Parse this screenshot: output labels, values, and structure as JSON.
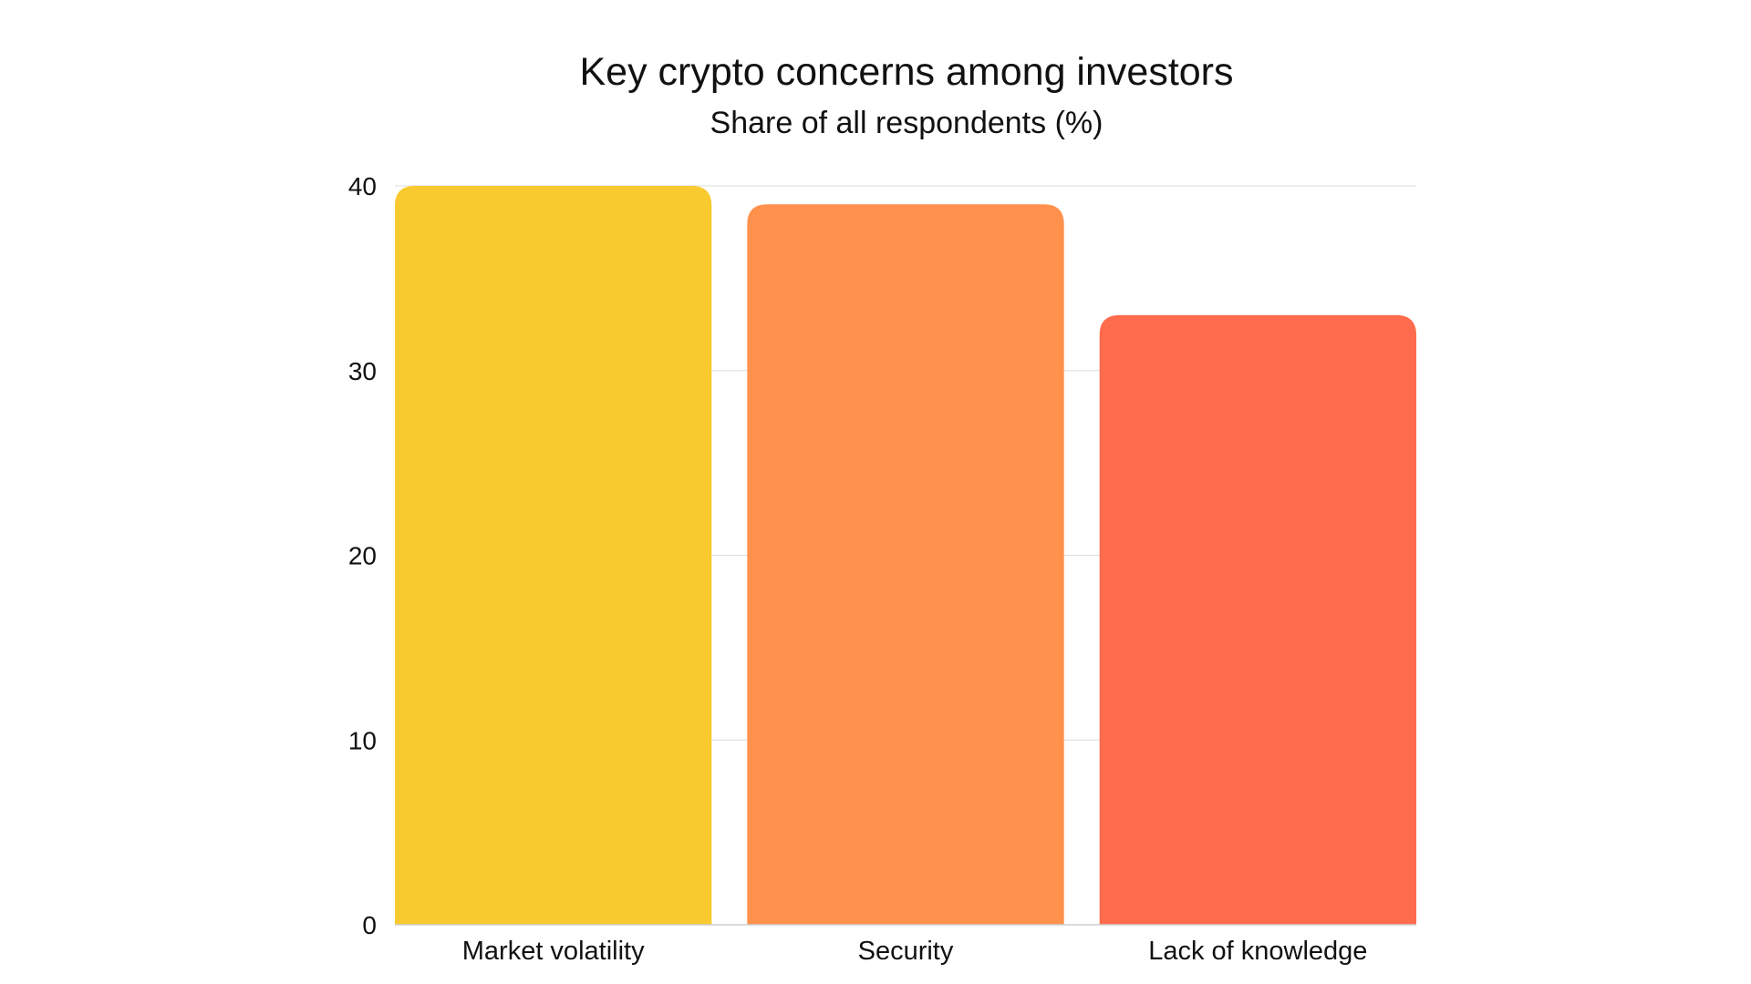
{
  "chart_data": {
    "type": "bar",
    "title": "Key crypto concerns among investors",
    "subtitle": "Share of all respondents (%)",
    "xlabel": "",
    "ylabel": "",
    "categories": [
      "Market volatility",
      "Security",
      "Lack of knowledge"
    ],
    "values": [
      40,
      39,
      33
    ],
    "ylim": [
      0,
      40
    ],
    "yticks": [
      0,
      10,
      20,
      30,
      40
    ],
    "grid": true,
    "legend": "none",
    "colors": [
      "#F9CA2F",
      "#FF914D",
      "#FF6B4D"
    ]
  }
}
